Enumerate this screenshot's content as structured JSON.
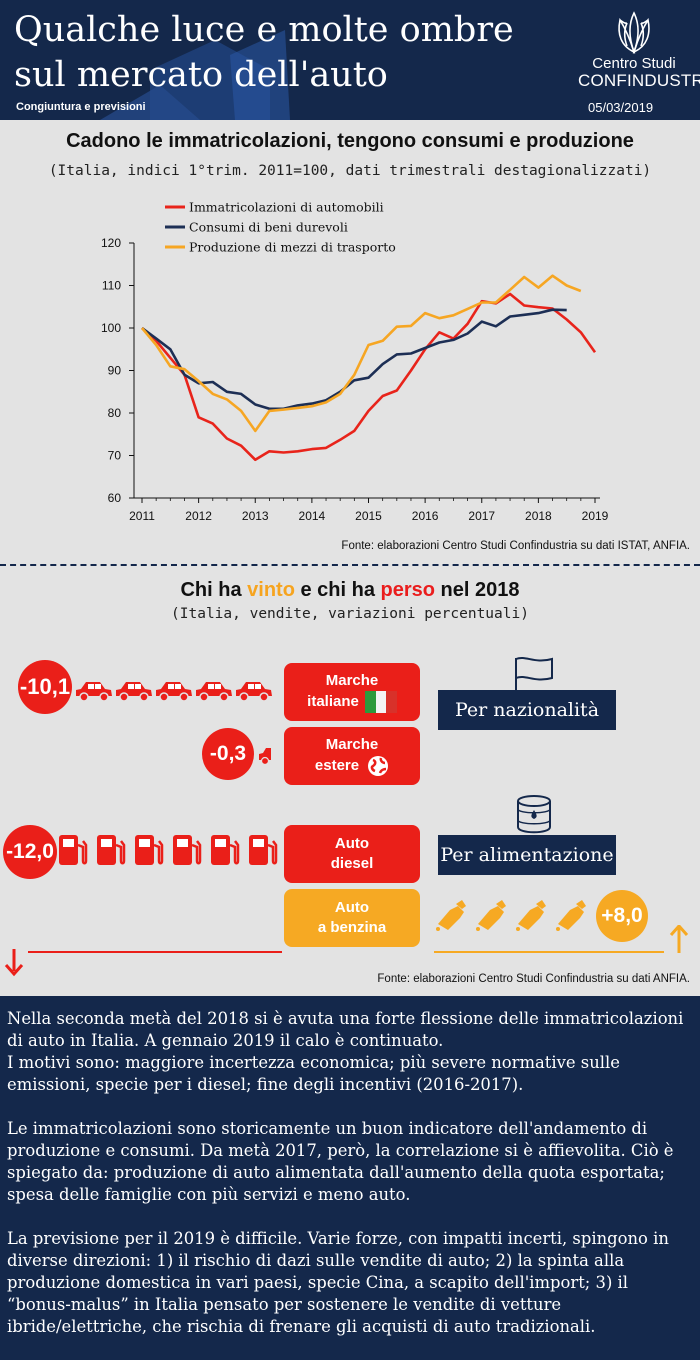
{
  "header": {
    "title_line1": "Qualche luce e molte ombre",
    "title_line2": "sul mercato dell'auto",
    "subtitle": "Congiuntura e previsioni",
    "logo_line1": "Centro Studi",
    "logo_line2": "CONFINDUSTRIA",
    "date": "05/03/2019"
  },
  "section1": {
    "title": "Cadono le immatricolazioni, tengono consumi e produzione",
    "subtitle": "(Italia, indici 1°trim. 2011=100, dati trimestrali destagionalizzati)",
    "source": "Fonte: elaborazioni Centro Studi Confindustria su dati ISTAT, ANFIA."
  },
  "chart_data": {
    "type": "line",
    "title": "Cadono le immatricolazioni, tengono consumi e produzione",
    "xlabel": "",
    "ylabel": "",
    "ylim": [
      60,
      120
    ],
    "yticks": [
      60,
      70,
      80,
      90,
      100,
      110,
      120
    ],
    "xlim": [
      2011,
      2019
    ],
    "xticks": [
      "2011",
      "2012",
      "2013",
      "2014",
      "2015",
      "2016",
      "2017",
      "2018",
      "2019"
    ],
    "grid": false,
    "legend": "top-left",
    "series": [
      {
        "name": "Immatricolazioni di automobili",
        "color": "#e8241b",
        "values": [
          [
            2011.0,
            100
          ],
          [
            2011.25,
            97
          ],
          [
            2011.5,
            93
          ],
          [
            2011.75,
            89
          ],
          [
            2012.0,
            79
          ],
          [
            2012.25,
            77.5
          ],
          [
            2012.5,
            74
          ],
          [
            2012.75,
            72.3
          ],
          [
            2013.0,
            69
          ],
          [
            2013.25,
            71
          ],
          [
            2013.5,
            70.7
          ],
          [
            2013.75,
            71
          ],
          [
            2014.0,
            71.5
          ],
          [
            2014.25,
            71.8
          ],
          [
            2014.5,
            73.7
          ],
          [
            2014.75,
            75.8
          ],
          [
            2015.0,
            80.5
          ],
          [
            2015.25,
            84
          ],
          [
            2015.5,
            85.3
          ],
          [
            2015.75,
            90
          ],
          [
            2016.0,
            95
          ],
          [
            2016.25,
            99
          ],
          [
            2016.5,
            97.5
          ],
          [
            2016.75,
            101
          ],
          [
            2017.0,
            106.3
          ],
          [
            2017.25,
            105.8
          ],
          [
            2017.5,
            108
          ],
          [
            2017.75,
            105.3
          ],
          [
            2018.0,
            104.9
          ],
          [
            2018.25,
            104.6
          ],
          [
            2018.5,
            102
          ],
          [
            2018.75,
            99
          ],
          [
            2019.0,
            94.3
          ]
        ]
      },
      {
        "name": "Consumi di beni durevoli",
        "color": "#1d2f55",
        "values": [
          [
            2011.0,
            100
          ],
          [
            2011.25,
            97.5
          ],
          [
            2011.5,
            95
          ],
          [
            2011.75,
            89
          ],
          [
            2012.0,
            87
          ],
          [
            2012.25,
            87.3
          ],
          [
            2012.5,
            85
          ],
          [
            2012.75,
            84.5
          ],
          [
            2013.0,
            82
          ],
          [
            2013.25,
            81
          ],
          [
            2013.5,
            81
          ],
          [
            2013.75,
            81.8
          ],
          [
            2014.0,
            82.2
          ],
          [
            2014.25,
            83
          ],
          [
            2014.5,
            85
          ],
          [
            2014.75,
            87.7
          ],
          [
            2015.0,
            88.3
          ],
          [
            2015.25,
            91.5
          ],
          [
            2015.5,
            93.8
          ],
          [
            2015.75,
            94
          ],
          [
            2016.0,
            95.3
          ],
          [
            2016.25,
            96.6
          ],
          [
            2016.5,
            97.2
          ],
          [
            2016.75,
            98.7
          ],
          [
            2017.0,
            101.5
          ],
          [
            2017.25,
            100.4
          ],
          [
            2017.5,
            102.7
          ],
          [
            2017.75,
            103.1
          ],
          [
            2018.0,
            103.5
          ],
          [
            2018.25,
            104.3
          ],
          [
            2018.5,
            104.2
          ]
        ]
      },
      {
        "name": "Produzione di mezzi di trasporto",
        "color": "#f6a623",
        "values": [
          [
            2011.0,
            100
          ],
          [
            2011.25,
            96
          ],
          [
            2011.5,
            91
          ],
          [
            2011.75,
            90.3
          ],
          [
            2012.0,
            87.5
          ],
          [
            2012.25,
            84.5
          ],
          [
            2012.5,
            83.2
          ],
          [
            2012.75,
            80.5
          ],
          [
            2013.0,
            75.8
          ],
          [
            2013.25,
            80.5
          ],
          [
            2013.5,
            80.8
          ],
          [
            2013.75,
            81.2
          ],
          [
            2014.0,
            81.6
          ],
          [
            2014.25,
            82.5
          ],
          [
            2014.5,
            84.5
          ],
          [
            2014.75,
            89
          ],
          [
            2015.0,
            96
          ],
          [
            2015.25,
            97
          ],
          [
            2015.5,
            100.3
          ],
          [
            2015.75,
            100.5
          ],
          [
            2016.0,
            103.5
          ],
          [
            2016.25,
            102.3
          ],
          [
            2016.5,
            103
          ],
          [
            2016.75,
            104.5
          ],
          [
            2017.0,
            106
          ],
          [
            2017.25,
            106
          ],
          [
            2017.5,
            109
          ],
          [
            2017.75,
            112
          ],
          [
            2018.0,
            109.5
          ],
          [
            2018.25,
            112.3
          ],
          [
            2018.5,
            110
          ],
          [
            2018.75,
            108.7
          ]
        ]
      }
    ]
  },
  "section2": {
    "title_pre": "Chi ha ",
    "title_win": "vinto",
    "title_mid": " e chi ha ",
    "title_lose": "perso",
    "title_post": " nel 2018",
    "subtitle": "(Italia, vendite, variazioni percentuali)",
    "source": "Fonte: elaborazioni Centro Studi Confindustria su dati ANFIA.",
    "colors": {
      "win": "#f6a923",
      "lose": "#ea1f19",
      "navy": "#14284b"
    },
    "italian_brands": {
      "value": "-10,1",
      "label_line1": "Marche",
      "label_line2": "italiane",
      "icon": "car-icon"
    },
    "foreign_brands": {
      "value": "-0,3",
      "label_line1": "Marche",
      "label_line2": "estere",
      "icon": "globe-icon"
    },
    "diesel": {
      "value": "-12,0",
      "label_line1": "Auto",
      "label_line2": "diesel",
      "icon": "fuel-pump-icon"
    },
    "petrol": {
      "value": "+8,0",
      "label_line1": "Auto",
      "label_line2": "a benzina",
      "icon": "fuel-nozzle-icon"
    },
    "by_nationality": "Per nazionalità",
    "by_fuel": "Per alimentazione"
  },
  "text": {
    "p1_line1": "Nella seconda metà del 2018 si è avuta una forte flessione delle immatricolazioni di auto in Italia. A gennaio 2019 il calo è continuato.",
    "p1_line2": "I motivi sono: maggiore incertezza economica; più severe normative sulle emissioni, specie per i diesel; fine degli incentivi (2016-2017).",
    "p2": "Le immatricolazioni sono storicamente un buon indicatore dell'andamento di produzione e consumi. Da metà 2017, però, la correlazione si è affievolita. Ciò è spiegato da: produzione di auto alimentata dall'aumento della quota esportata; spesa delle famiglie con più servizi e meno auto.",
    "p3": "La previsione per il 2019 è difficile. Varie forze, con impatti incerti, spingono in diverse direzioni: 1) il rischio di dazi sulle vendite di auto; 2) la spinta alla produzione domestica in vari paesi, specie Cina, a scapito dell'import; 3) il “bonus-malus” in Italia pensato per sostenere le vendite di vetture ibride/elettriche, che rischia di frenare gli acquisti di auto tradizionali."
  }
}
